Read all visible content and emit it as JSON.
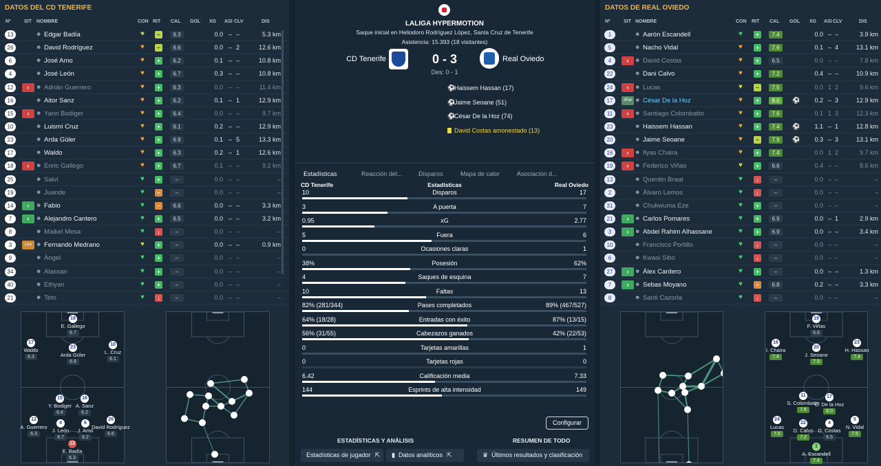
{
  "left_panel": {
    "title": "DATOS DEL CD TENERIFE",
    "cols": [
      "Nº",
      "SIT",
      "NOMBRE",
      "CON",
      "RIT",
      "CAL",
      "GOL",
      "XG",
      "ASI",
      "CLV",
      "DIS"
    ],
    "players": [
      {
        "n": "13",
        "sit": "",
        "name": "Edgar Badía",
        "con": "y",
        "rit": "y",
        "cal": "6.3",
        "xg": "0.0",
        "asi": "–",
        "clv": "–",
        "dis": "5.3 km",
        "dim": false
      },
      {
        "n": "26",
        "sit": "",
        "name": "David Rodríguez",
        "con": "o",
        "rit": "y",
        "cal": "6.6",
        "xg": "0.0",
        "asi": "–",
        "clv": "2",
        "dis": "12.6 km",
        "dim": false
      },
      {
        "n": "6",
        "sit": "",
        "name": "José Amo",
        "con": "o",
        "rit": "g",
        "cal": "6.2",
        "xg": "0.1",
        "asi": "–",
        "clv": "–",
        "dis": "10.8 km",
        "dim": false
      },
      {
        "n": "4",
        "sit": "",
        "name": "José León",
        "con": "o",
        "rit": "g",
        "cal": "6.7",
        "xg": "0.3",
        "asi": "–",
        "clv": "–",
        "dis": "10.8 km",
        "dim": false
      },
      {
        "n": "12",
        "sit": "off",
        "name": "Adrián Guerrero",
        "con": "o",
        "rit": "g",
        "cal": "6.3",
        "xg": "0.0",
        "asi": "–",
        "clv": "–",
        "dis": "11.4 km",
        "dim": true
      },
      {
        "n": "16",
        "sit": "",
        "name": "Aitor Sanz",
        "con": "o",
        "rit": "g",
        "cal": "6.2",
        "xg": "0.1",
        "asi": "–",
        "clv": "1",
        "dis": "12.9 km",
        "dim": false
      },
      {
        "n": "15",
        "sit": "off",
        "name": "Yann Bodiger",
        "con": "o",
        "rit": "g",
        "cal": "6.4",
        "xg": "0.0",
        "asi": "–",
        "clv": "–",
        "dis": "9.7 km",
        "dim": true
      },
      {
        "n": "10",
        "sit": "",
        "name": "Luismi Cruz",
        "con": "o",
        "rit": "g",
        "cal": "6.1",
        "xg": "0.2",
        "asi": "–",
        "clv": "–",
        "dis": "12.9 km",
        "dim": false
      },
      {
        "n": "23",
        "sit": "",
        "name": "Arda Güler",
        "con": "o",
        "rit": "g",
        "cal": "6.9",
        "xg": "0.1",
        "asi": "–",
        "clv": "5",
        "dis": "13.3 km",
        "dim": false
      },
      {
        "n": "17",
        "sit": "",
        "name": "Waldo",
        "con": "o",
        "rit": "g",
        "cal": "6.3",
        "xg": "0.2",
        "asi": "–",
        "clv": "1",
        "dis": "12.6 km",
        "dim": false
      },
      {
        "n": "18",
        "sit": "off",
        "name": "Enric Gallego",
        "con": "o",
        "rit": "g",
        "cal": "6.7",
        "xg": "0.1",
        "asi": "–",
        "clv": "–",
        "dis": "9.2 km",
        "dim": true
      },
      {
        "n": "25",
        "sit": "",
        "name": "Salvi",
        "con": "g",
        "rit": "g",
        "cal": "–",
        "xg": "0.0",
        "asi": "–",
        "clv": "–",
        "dis": "–",
        "dim": true
      },
      {
        "n": "19",
        "sit": "",
        "name": "Juande",
        "con": "g",
        "rit": "o",
        "cal": "–",
        "xg": "0.0",
        "asi": "–",
        "clv": "–",
        "dis": "–",
        "dim": true
      },
      {
        "n": "14",
        "sit": "on",
        "name": "Fabio",
        "con": "g",
        "rit": "o",
        "cal": "6.6",
        "xg": "0.0",
        "asi": "–",
        "clv": "–",
        "dis": "3.3 km",
        "dim": false
      },
      {
        "n": "7",
        "sit": "on",
        "name": "Alejandro Cantero",
        "con": "g",
        "rit": "g",
        "cal": "6.5",
        "xg": "0.0",
        "asi": "–",
        "clv": "–",
        "dis": "3.2 km",
        "dim": false
      },
      {
        "n": "8",
        "sit": "",
        "name": "Maikel Mesa",
        "con": "g",
        "rit": "r",
        "cal": "–",
        "xg": "0.0",
        "asi": "–",
        "clv": "–",
        "dis": "–",
        "dim": true
      },
      {
        "n": "3",
        "sit": "les",
        "name": "Fernando Medrano",
        "con": "y",
        "rit": "g",
        "cal": "–",
        "xg": "0.0",
        "asi": "–",
        "clv": "–",
        "dis": "0.9 km",
        "dim": false
      },
      {
        "n": "9",
        "sit": "",
        "name": "Ángel",
        "con": "g",
        "rit": "g",
        "cal": "–",
        "xg": "0.0",
        "asi": "–",
        "clv": "–",
        "dis": "–",
        "dim": true
      },
      {
        "n": "34",
        "sit": "",
        "name": "Alassan",
        "con": "g",
        "rit": "g",
        "cal": "–",
        "xg": "0.0",
        "asi": "–",
        "clv": "–",
        "dis": "–",
        "dim": true
      },
      {
        "n": "40",
        "sit": "",
        "name": "Ethyan",
        "con": "g",
        "rit": "g",
        "cal": "–",
        "xg": "0.0",
        "asi": "–",
        "clv": "–",
        "dis": "–",
        "dim": true
      },
      {
        "n": "21",
        "sit": "",
        "name": "Teto",
        "con": "g",
        "rit": "r",
        "cal": "–",
        "xg": "0.0",
        "asi": "–",
        "clv": "–",
        "dis": "–",
        "dim": true
      }
    ],
    "formation": [
      {
        "n": "18",
        "lbl": "E. Gallego",
        "r": "6.7"
      },
      {
        "n": "17",
        "lbl": "Waldo",
        "r": "6.3"
      },
      {
        "n": "23",
        "lbl": "Arda Güler",
        "r": "6.9"
      },
      {
        "n": "10",
        "lbl": "L. Cruz",
        "r": "6.1"
      },
      {
        "n": "15",
        "lbl": "Y. Bodiger",
        "r": "6.4"
      },
      {
        "n": "16",
        "lbl": "A. Sanz",
        "r": "6.2"
      },
      {
        "n": "12",
        "lbl": "A. Guerrero",
        "r": "6.3"
      },
      {
        "n": "4",
        "lbl": "J. León",
        "r": "6.7"
      },
      {
        "n": "6",
        "lbl": "J. Amo",
        "r": "6.2"
      },
      {
        "n": "26",
        "lbl": "David Rodríguez",
        "r": "6.6"
      },
      {
        "n": "13",
        "lbl": "E. Badía",
        "r": "6.3"
      }
    ]
  },
  "right_panel": {
    "title": "DATOS DE REAL OVIEDO",
    "cols": [
      "Nº",
      "SIT",
      "NOMBRE",
      "CON",
      "RIT",
      "CAL",
      "GOL",
      "XG",
      "ASI",
      "CLV",
      "DIS"
    ],
    "players": [
      {
        "n": "1",
        "sit": "",
        "name": "Aarón Escandell",
        "con": "g",
        "rit": "g",
        "cal": "7.4",
        "calc": "good",
        "gol": "",
        "xg": "0.0",
        "asi": "–",
        "clv": "–",
        "dis": "3.9 km",
        "dim": false
      },
      {
        "n": "5",
        "sit": "",
        "name": "Nacho Vidal",
        "con": "o",
        "rit": "g",
        "cal": "7.6",
        "calc": "good",
        "gol": "",
        "xg": "0.1",
        "asi": "–",
        "clv": "4",
        "dis": "13.1 km",
        "dim": false
      },
      {
        "n": "4",
        "sit": "off",
        "name": "David Costas",
        "con": "o",
        "rit": "g",
        "cal": "6.5",
        "calc": "",
        "gol": "",
        "xg": "0.0",
        "asi": "–",
        "clv": "–",
        "dis": "7.8 km",
        "dim": true
      },
      {
        "n": "22",
        "sit": "",
        "name": "Dani Calvo",
        "con": "o",
        "rit": "g",
        "cal": "7.2",
        "calc": "good",
        "gol": "",
        "xg": "0.4",
        "asi": "–",
        "clv": "–",
        "dis": "10.9 km",
        "dim": false
      },
      {
        "n": "24",
        "sit": "off",
        "name": "Lucas",
        "con": "y",
        "rit": "y",
        "cal": "7.5",
        "calc": "good",
        "gol": "",
        "xg": "0.0",
        "asi": "1",
        "clv": "2",
        "dis": "9.6 km",
        "dim": true
      },
      {
        "n": "17",
        "sit": "jpar",
        "name": "César De la Hoz",
        "con": "o",
        "rit": "g",
        "cal": "8.0",
        "calc": "best",
        "gol": "⚽",
        "xg": "0.2",
        "asi": "–",
        "clv": "3",
        "dis": "12.9 km",
        "dim": false,
        "hl": true
      },
      {
        "n": "11",
        "sit": "off",
        "name": "Santiago Colombatto",
        "con": "o",
        "rit": "g",
        "cal": "7.6",
        "calc": "good",
        "gol": "",
        "xg": "0.1",
        "asi": "1",
        "clv": "3",
        "dis": "12.3 km",
        "dim": true
      },
      {
        "n": "23",
        "sit": "",
        "name": "Haissem Hassan",
        "con": "o",
        "rit": "g",
        "cal": "7.4",
        "calc": "good",
        "gol": "⚽",
        "xg": "1.1",
        "asi": "–",
        "clv": "1",
        "dis": "12.8 km",
        "dim": false
      },
      {
        "n": "20",
        "sit": "",
        "name": "Jaime Seoane",
        "con": "o",
        "rit": "y",
        "cal": "7.9",
        "calc": "good",
        "gol": "⚽",
        "xg": "0.3",
        "asi": "–",
        "clv": "3",
        "dis": "13.1 km",
        "dim": false
      },
      {
        "n": "16",
        "sit": "off",
        "name": "Ilyas Chaira",
        "con": "o",
        "rit": "g",
        "cal": "7.4",
        "calc": "good",
        "gol": "",
        "xg": "0.0",
        "asi": "1",
        "clv": "2",
        "dis": "9.7 km",
        "dim": true
      },
      {
        "n": "19",
        "sit": "off",
        "name": "Federico Viñas",
        "con": "y",
        "rit": "g",
        "cal": "6.6",
        "calc": "",
        "gol": "",
        "xg": "0.4",
        "asi": "–",
        "clv": "–",
        "dis": "8.6 km",
        "dim": true
      },
      {
        "n": "13",
        "sit": "",
        "name": "Quentin Braat",
        "con": "g",
        "rit": "r",
        "cal": "–",
        "calc": "",
        "gol": "",
        "xg": "0.0",
        "asi": "–",
        "clv": "–",
        "dis": "–",
        "dim": true
      },
      {
        "n": "2",
        "sit": "",
        "name": "Álvaro Lemos",
        "con": "g",
        "rit": "r",
        "cal": "–",
        "calc": "",
        "gol": "",
        "xg": "0.0",
        "asi": "–",
        "clv": "–",
        "dis": "–",
        "dim": true
      },
      {
        "n": "31",
        "sit": "",
        "name": "Chukwuma Eze",
        "con": "g",
        "rit": "g",
        "cal": "–",
        "calc": "",
        "gol": "",
        "xg": "0.0",
        "asi": "–",
        "clv": "–",
        "dis": "–",
        "dim": true
      },
      {
        "n": "21",
        "sit": "on",
        "name": "Carlos Pomares",
        "con": "g",
        "rit": "g",
        "cal": "6.9",
        "calc": "",
        "gol": "",
        "xg": "0.0",
        "asi": "–",
        "clv": "1",
        "dis": "2.9 km",
        "dim": false
      },
      {
        "n": "3",
        "sit": "on",
        "name": "Abdel Rahim Alhassane",
        "con": "g",
        "rit": "g",
        "cal": "6.9",
        "calc": "",
        "gol": "",
        "xg": "0.0",
        "asi": "–",
        "clv": "–",
        "dis": "3.4 km",
        "dim": false
      },
      {
        "n": "10",
        "sit": "",
        "name": "Francisco Portillo",
        "con": "g",
        "rit": "r",
        "cal": "–",
        "calc": "",
        "gol": "",
        "xg": "0.0",
        "asi": "–",
        "clv": "–",
        "dis": "–",
        "dim": true
      },
      {
        "n": "6",
        "sit": "",
        "name": "Kwasi Sibo",
        "con": "g",
        "rit": "r",
        "cal": "–",
        "calc": "",
        "gol": "",
        "xg": "0.0",
        "asi": "–",
        "clv": "–",
        "dis": "–",
        "dim": true
      },
      {
        "n": "27",
        "sit": "on",
        "name": "Álex Cardero",
        "con": "g",
        "rit": "g",
        "cal": "–",
        "calc": "",
        "gol": "",
        "xg": "0.0",
        "asi": "–",
        "clv": "–",
        "dis": "1.3 km",
        "dim": false
      },
      {
        "n": "7",
        "sit": "on",
        "name": "Sebas Moyano",
        "con": "g",
        "rit": "o",
        "cal": "6.8",
        "calc": "",
        "gol": "",
        "xg": "0.2",
        "asi": "–",
        "clv": "–",
        "dis": "3.3 km",
        "dim": false
      },
      {
        "n": "8",
        "sit": "",
        "name": "Santi Cazorla",
        "con": "g",
        "rit": "r",
        "cal": "–",
        "calc": "",
        "gol": "",
        "xg": "0.0",
        "asi": "–",
        "clv": "–",
        "dis": "–",
        "dim": true
      }
    ],
    "formation": [
      {
        "n": "19",
        "lbl": "F. Viñas",
        "r": "6.6",
        "g": false
      },
      {
        "n": "16",
        "lbl": "I. Chaira",
        "r": "7.4",
        "g": true
      },
      {
        "n": "20",
        "lbl": "J. Seoane",
        "r": "7.9",
        "g": true
      },
      {
        "n": "23",
        "lbl": "H. Hassan",
        "r": "7.4",
        "g": true
      },
      {
        "n": "11",
        "lbl": "S. Colombatto",
        "r": "7.6",
        "g": true
      },
      {
        "n": "17",
        "lbl": "C. De la Hoz",
        "r": "8.0",
        "g": true
      },
      {
        "n": "24",
        "lbl": "Lucas",
        "r": "7.5",
        "g": true
      },
      {
        "n": "22",
        "lbl": "D. Calvo",
        "r": "7.2",
        "g": true
      },
      {
        "n": "4",
        "lbl": "D. Costas",
        "r": "6.5",
        "g": false
      },
      {
        "n": "5",
        "lbl": "N. Vidal",
        "r": "7.6",
        "g": true
      },
      {
        "n": "1",
        "lbl": "A. Escandell",
        "r": "7.4",
        "g": true
      }
    ]
  },
  "center": {
    "league": "LALIGA HYPERMOTION",
    "venue": "Saque inicial en Heliodoro Rodríguez López, Santa Cruz de Tenerife",
    "attendance": "Asistencia: 15.393 (18 visitantes)",
    "home_team": "CD Tenerife",
    "away_team": "Real Oviedo",
    "score": "0 - 3",
    "halftime": "Des: 0 - 1",
    "events": [
      {
        "icon": "ball-icon",
        "text": "Haissem Hassan (17)"
      },
      {
        "icon": "ball-icon",
        "text": "Jaime Seoane (51)"
      },
      {
        "icon": "ball-icon",
        "text": "César De la Hoz (74)"
      },
      {
        "icon": "yellow-card-icon",
        "text": "David Costas amonestado (13)"
      }
    ],
    "tabs": [
      "Estadísticas",
      "Reacción del...",
      "Disparos",
      "Mapa de calor",
      "Asociación d..."
    ],
    "stats_header": {
      "home": "CD Tenerife",
      "mid": "Estadísticas",
      "away": "Real Oviedo"
    },
    "stats": [
      {
        "label": "Disparos",
        "h": "10",
        "a": "17",
        "hv": 10,
        "av": 17
      },
      {
        "label": "A puerta",
        "h": "3",
        "a": "7",
        "hv": 3,
        "av": 7
      },
      {
        "label": "xG",
        "h": "0.95",
        "a": "2.77",
        "hv": 0.95,
        "av": 2.77
      },
      {
        "label": "Fuera",
        "h": "5",
        "a": "6",
        "hv": 5,
        "av": 6
      },
      {
        "label": "Ocasiones claras",
        "h": "0",
        "a": "1",
        "hv": 0,
        "av": 1
      },
      {
        "label": "Posesión",
        "h": "38%",
        "a": "62%",
        "hv": 38,
        "av": 62
      },
      {
        "label": "Saques de esquina",
        "h": "4",
        "a": "7",
        "hv": 4,
        "av": 7
      },
      {
        "label": "Faltas",
        "h": "10",
        "a": "13",
        "hv": 10,
        "av": 13
      },
      {
        "label": "Pases completados",
        "h": "82% (281/344)",
        "a": "89% (467/527)",
        "hv": 281,
        "av": 467
      },
      {
        "label": "Entradas con éxito",
        "h": "64% (18/28)",
        "a": "87% (13/15)",
        "hv": 18,
        "av": 13
      },
      {
        "label": "Cabezazos ganados",
        "h": "56% (31/55)",
        "a": "42% (22/53)",
        "hv": 31,
        "av": 22
      },
      {
        "label": "Tarjetas amarillas",
        "h": "0",
        "a": "1",
        "hv": 0,
        "av": 1
      },
      {
        "label": "Tarjetas rojas",
        "h": "0",
        "a": "0",
        "hv": 0,
        "av": 0
      },
      {
        "label": "Calificación media",
        "h": "6.42",
        "a": "7.33",
        "hv": 6.42,
        "av": 7.33
      },
      {
        "label": "Esprints de alta intensidad",
        "h": "144",
        "a": "149",
        "hv": 144,
        "av": 149
      }
    ],
    "config_label": "Configurar",
    "section_left": "ESTADÍSTICAS Y ANÁLISIS",
    "section_right": "RESUMEN DE TODO",
    "buttons": [
      "Estadísticas de jugador",
      "Datos analíticos",
      "Últimos resultados y clasificación"
    ]
  }
}
